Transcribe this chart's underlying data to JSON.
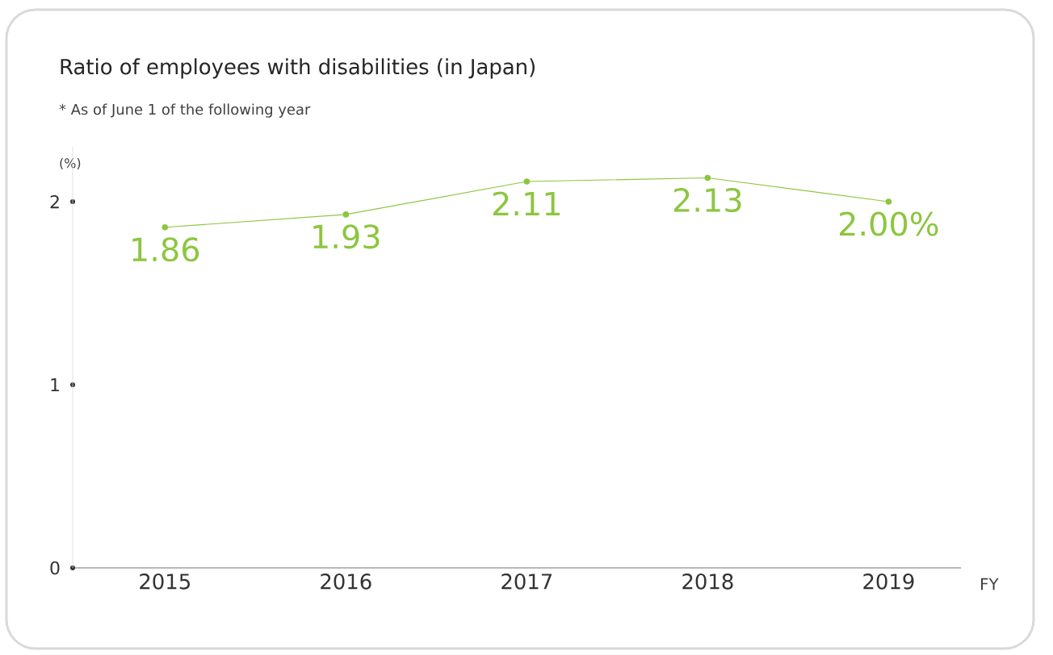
{
  "chart_data": {
    "type": "line",
    "title": "Ratio of employees with disabilities (in Japan)",
    "annotations": [
      "* As of June 1 of the following year"
    ],
    "ylabel": "(%)",
    "xlabel": "FY",
    "categories": [
      "2015",
      "2016",
      "2017",
      "2018",
      "2019"
    ],
    "series": [
      {
        "color": "#8cc63f",
        "values": [
          1.86,
          1.93,
          2.11,
          2.13,
          2.0
        ],
        "value_labels": [
          "1.86",
          "1.93",
          "2.11",
          "2.13",
          "2.00%"
        ]
      }
    ],
    "ylim": [
      0,
      2.3
    ],
    "yticks": [
      0,
      1,
      2
    ],
    "grid": false,
    "marker": "circle",
    "line_style": "solid"
  }
}
